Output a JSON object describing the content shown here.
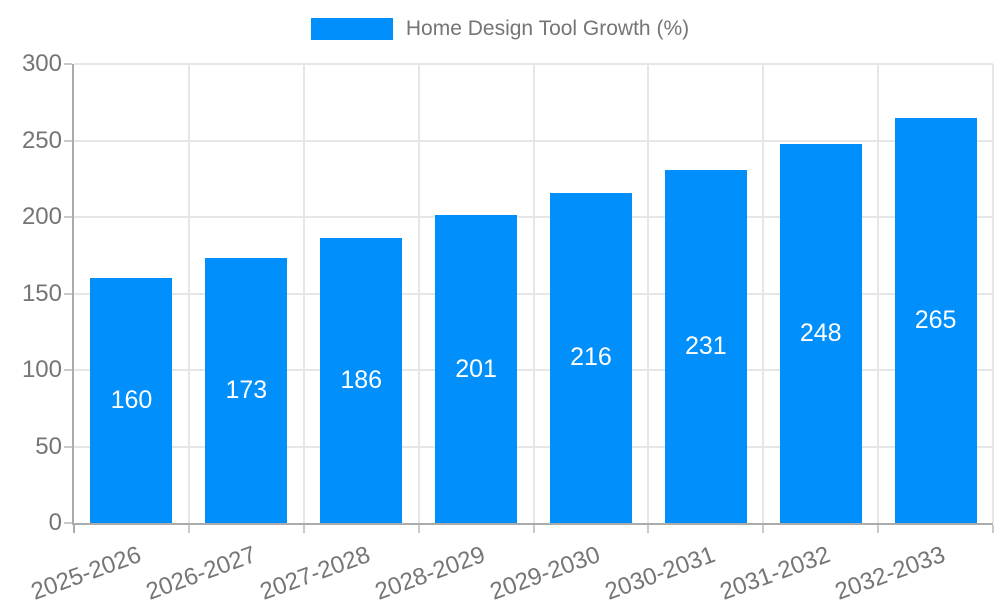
{
  "legend": {
    "label": "Home Design Tool Growth (%)"
  },
  "colors": {
    "bar": "#008FFB",
    "axis": "#ababab",
    "grid": "#e6e6e6",
    "tick": "#c9c9c9",
    "label": "#757575",
    "data_label": "#ffffff"
  },
  "chart_data": {
    "type": "bar",
    "title": "Home Design Tool Growth (%)",
    "categories": [
      "2025-2026",
      "2026-2027",
      "2027-2028",
      "2028-2029",
      "2029-2030",
      "2030-2031",
      "2031-2032",
      "2032-2033"
    ],
    "values": [
      160,
      173,
      186,
      201,
      216,
      231,
      248,
      265
    ],
    "xlabel": "",
    "ylabel": "",
    "ylim": [
      0,
      300
    ],
    "yticks": [
      0,
      50,
      100,
      150,
      200,
      250,
      300
    ],
    "grid": true,
    "legend_position": "top",
    "data_labels": true,
    "data_label_position": "center",
    "x_label_rotation": -20
  }
}
